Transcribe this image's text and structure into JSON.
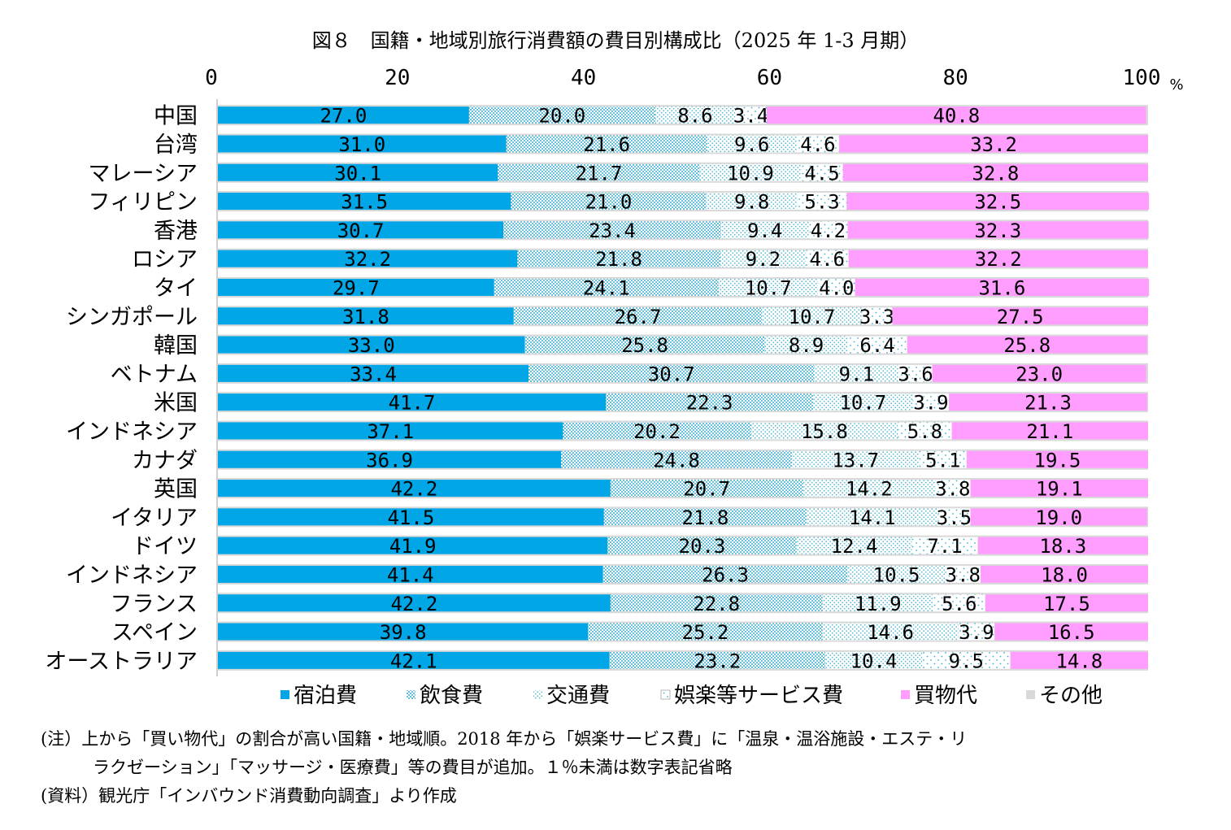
{
  "chart_data": {
    "type": "bar",
    "orientation": "horizontal",
    "stacked": true,
    "title": "図８　国籍・地域別旅行消費額の費目別構成比（2025 年 1-3 月期）",
    "unit": "%",
    "xlim": [
      0,
      100
    ],
    "xticks": [
      "0",
      "20",
      "40",
      "60",
      "80",
      "100"
    ],
    "legend_position": "bottom",
    "categories": [
      "中国",
      "台湾",
      "マレーシア",
      "フィリピン",
      "香港",
      "ロシア",
      "タイ",
      "シンガポール",
      "韓国",
      "ベトナム",
      "米国",
      "インドネシア",
      "カナダ",
      "英国",
      "イタリア",
      "ドイツ",
      "インドネシア",
      "フランス",
      "スペイン",
      "オーストラリア"
    ],
    "series": [
      {
        "name": "宿泊費",
        "color": "#00A6E6",
        "pattern": "solid",
        "values": [
          27.0,
          31.0,
          30.1,
          31.5,
          30.7,
          32.2,
          29.7,
          31.8,
          33.0,
          33.4,
          41.7,
          37.1,
          36.9,
          42.2,
          41.5,
          41.9,
          41.4,
          42.2,
          39.8,
          42.1
        ]
      },
      {
        "name": "飲食費",
        "color": "#2AA7C8",
        "pattern": "dense-dots",
        "values": [
          20.0,
          21.6,
          21.7,
          21.0,
          23.4,
          21.8,
          24.1,
          26.7,
          25.8,
          30.7,
          22.3,
          20.2,
          24.8,
          20.7,
          21.8,
          20.3,
          26.3,
          22.8,
          25.2,
          23.2
        ]
      },
      {
        "name": "交通費",
        "color": "#6FC9D8",
        "pattern": "light-dots",
        "values": [
          8.6,
          9.6,
          10.9,
          9.8,
          9.4,
          9.2,
          10.7,
          10.7,
          8.9,
          9.1,
          10.7,
          15.8,
          13.7,
          14.2,
          14.1,
          12.4,
          10.5,
          11.9,
          14.6,
          10.4
        ]
      },
      {
        "name": "娯楽等サービス費",
        "color": "#4DB8D6",
        "pattern": "sparse-dots",
        "values": [
          3.4,
          4.6,
          4.5,
          5.3,
          4.2,
          4.6,
          4.0,
          3.3,
          6.4,
          3.6,
          3.9,
          5.8,
          5.1,
          3.8,
          3.5,
          7.1,
          3.8,
          5.6,
          3.9,
          9.5
        ]
      },
      {
        "name": "買物代",
        "color": "#FF9EFF",
        "pattern": "solid",
        "values": [
          40.8,
          33.2,
          32.8,
          32.5,
          32.3,
          32.2,
          31.6,
          27.5,
          25.8,
          23.0,
          21.3,
          21.1,
          19.5,
          19.1,
          19.0,
          18.3,
          18.0,
          17.5,
          16.5,
          14.8
        ]
      },
      {
        "name": "その他",
        "color": "#D9D9D9",
        "pattern": "solid",
        "values": [
          0.2,
          0.0,
          0.0,
          0.0,
          0.1,
          0.0,
          0.0,
          0.0,
          0.1,
          0.2,
          0.1,
          0.0,
          0.0,
          0.0,
          0.1,
          0.0,
          0.0,
          0.0,
          0.0,
          0.0
        ]
      }
    ],
    "labels": [
      [
        "27.0",
        "20.0",
        "8.6",
        "3.4",
        "40.8"
      ],
      [
        "31.0",
        "21.6",
        "9.6",
        "4.6",
        "33.2"
      ],
      [
        "30.1",
        "21.7",
        "10.9",
        "4.5",
        "32.8"
      ],
      [
        "31.5",
        "21.0",
        "9.8",
        "5.3",
        "32.5"
      ],
      [
        "30.7",
        "23.4",
        "9.4",
        "4.2",
        "32.3"
      ],
      [
        "32.2",
        "21.8",
        "9.2",
        "4.6",
        "32.2"
      ],
      [
        "29.7",
        "24.1",
        "10.7",
        "4.0",
        "31.6"
      ],
      [
        "31.8",
        "26.7",
        "10.7",
        "3.3",
        "27.5"
      ],
      [
        "33.0",
        "25.8",
        "8.9",
        "6.4",
        "25.8"
      ],
      [
        "33.4",
        "30.7",
        "9.1",
        "3.6",
        "23.0"
      ],
      [
        "41.7",
        "22.3",
        "10.7",
        "3.9",
        "21.3"
      ],
      [
        "37.1",
        "20.2",
        "15.8",
        "5.8",
        "21.1"
      ],
      [
        "36.9",
        "24.8",
        "13.7",
        "5.1",
        "19.5"
      ],
      [
        "42.2",
        "20.7",
        "14.2",
        "3.8",
        "19.1"
      ],
      [
        "41.5",
        "21.8",
        "14.1",
        "3.5",
        "19.0"
      ],
      [
        "41.9",
        "20.3",
        "12.4",
        "7.1",
        "18.3"
      ],
      [
        "41.4",
        "26.3",
        "10.5",
        "3.8",
        "18.0"
      ],
      [
        "42.2",
        "22.8",
        "11.9",
        "5.6",
        "17.5"
      ],
      [
        "39.8",
        "25.2",
        "14.6",
        "3.9",
        "16.5"
      ],
      [
        "42.1",
        "23.2",
        "10.4",
        "9.5",
        "14.8"
      ]
    ]
  },
  "notes": {
    "note1": "(注）上から「買い物代」の割合が高い国籍・地域順。2018 年から「娯楽サービス費」に「温泉・温浴施設・エステ・リ",
    "note2": "ラクゼーション」「マッサージ・医療費」等の費目が追加。１％未満は数字表記省略",
    "note3": "(資料）観光庁「インバウンド消費動向調査」より作成"
  }
}
